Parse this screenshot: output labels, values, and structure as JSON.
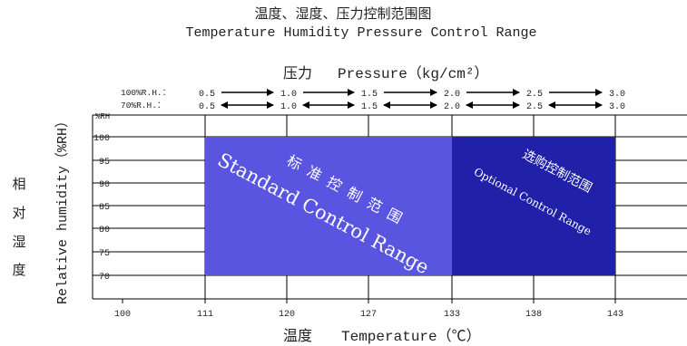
{
  "title": {
    "zh": "温度、湿度、压力控制范围图",
    "en": "Temperature Humidity Pressure Control Range"
  },
  "pressure": {
    "heading_zh": "压力",
    "heading_en": "Pressure（kg/cm²）",
    "row_100_label": "100%R.H.：",
    "row_70_label": "70%R.H.：",
    "values": [
      "0.5",
      "1.0",
      "1.5",
      "2.0",
      "2.5",
      "3.0"
    ]
  },
  "y_axis": {
    "unit": "%RH",
    "label_en": "Relative humidity（%RH）",
    "label_zh": [
      "相",
      "对",
      "湿",
      "度"
    ],
    "ticks": [
      "100",
      "95",
      "90",
      "85",
      "80",
      "75",
      "70"
    ]
  },
  "x_axis": {
    "label_zh": "温度",
    "label_en": "Temperature（℃）",
    "ticks": [
      "100",
      "111",
      "120",
      "127",
      "133",
      "138",
      "143"
    ]
  },
  "regions": {
    "standard": {
      "label_zh": "标准控制范围",
      "label_en": "Standard Control Range",
      "temp_range": [
        111,
        133
      ],
      "rh_range": [
        70,
        100
      ],
      "color": "#5a55e0"
    },
    "optional": {
      "label_zh": "选购控制范围",
      "label_en": "Optional Control Range",
      "temp_range": [
        133,
        143
      ],
      "rh_range": [
        70,
        100
      ],
      "color": "#2020a8"
    }
  },
  "colors": {
    "grid": "#000000",
    "text": "#222222",
    "region_text": "#ffffff"
  }
}
